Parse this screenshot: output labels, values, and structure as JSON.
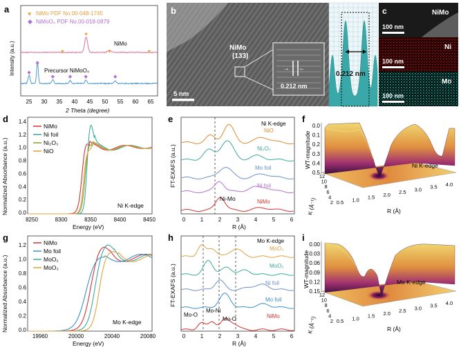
{
  "colors": {
    "pink": "#e0608a",
    "blue": "#3a8fc8",
    "gold": "#e6a64a",
    "purple": "#b070d0",
    "red": "#d43030",
    "teal": "#3aa89a",
    "olive": "#8a9a30",
    "tan": "#e0a040",
    "orange": "#e08a30",
    "slate": "#6a8fc8",
    "cyan": "#40d0c0",
    "ncolor": "#d02020"
  },
  "panel_a": {
    "label": "a",
    "legend": [
      "NiMo PDF No.00-048-1745",
      "NiMoO₄ PDF No.00-018-0879"
    ],
    "trace_labels": [
      "NiMo",
      "Precursor NiMoO₄"
    ],
    "ylabel": "Intensity (a.u.)",
    "xlabel": "2 Theta (degree)",
    "xticks": [
      "25",
      "30",
      "35",
      "40",
      "45",
      "50",
      "55",
      "60",
      "65"
    ]
  },
  "panel_b": {
    "label": "b",
    "phase": "NiMo",
    "plane": "(133)",
    "inset_spacing": "0.212 nm",
    "profile_spacing": "0.212 nm",
    "scale": "5 nm"
  },
  "panel_c": {
    "label": "c",
    "maps": [
      {
        "element": "NiMo",
        "scale": "100 nm"
      },
      {
        "element": "Ni",
        "scale": "100 nm"
      },
      {
        "element": "Mo",
        "scale": "100 nm"
      }
    ]
  },
  "panel_d": {
    "label": "d",
    "ylabel": "Normalized Absorbance (a.u.)",
    "xlabel": "Energy (eV)",
    "edge": "Ni K-edge",
    "legend": [
      "NiMo",
      "Ni foil",
      "Ni₂O₃",
      "NiO"
    ],
    "yticks": [
      "0.0",
      "0.2",
      "0.4",
      "0.6",
      "0.8",
      "1.0",
      "1.2",
      "1.4"
    ],
    "xticks": [
      "8250",
      "8300",
      "8350",
      "8400",
      "8450"
    ]
  },
  "panel_e": {
    "label": "e",
    "ylabel": "FT-EXAFS (a.u.)",
    "xlabel": "R (Å)",
    "edge": "Ni K-edge",
    "traces": [
      "NiO",
      "Ni₂O₃",
      "Mo foil",
      "Ni foil",
      "NiMo"
    ],
    "annotation": "Ni-Mo",
    "xticks": [
      "0",
      "1",
      "2",
      "3",
      "4",
      "5",
      "6"
    ]
  },
  "panel_f": {
    "label": "f",
    "zlabel": "WT-magnitude",
    "edge": "Ni K-edge",
    "zticks": [
      "0.0",
      "0.1",
      "0.2",
      "0.3",
      "0.4",
      "0.5"
    ],
    "klabel": "K (Å⁻¹)",
    "kticks": [
      "12",
      "10",
      "8",
      "6",
      "4",
      "2"
    ],
    "rlabel": "R (Å)",
    "rticks": [
      "0.5",
      "1.0",
      "1.5",
      "2.0",
      "2.5",
      "3.0",
      "3.5",
      "4.0"
    ]
  },
  "panel_g": {
    "label": "g",
    "ylabel": "Normalized Absorbance (a.u.)",
    "xlabel": "Energy (eV)",
    "edge": "Mo K-edge",
    "legend": [
      "NiMo",
      "Mo foil",
      "MoO₂",
      "MoO₃"
    ],
    "yticks": [
      "0.0",
      "0.2",
      "0.4",
      "0.6",
      "0.8",
      "1.0",
      "1.2"
    ],
    "xticks": [
      "19960",
      "20000",
      "20040",
      "20080"
    ]
  },
  "panel_h": {
    "label": "h",
    "ylabel": "FT-EXAFS (a.u.)",
    "xlabel": "R (Å)",
    "edge": "Mo K-edge",
    "traces": [
      "MoO₃",
      "MoO₂",
      "Ni foil",
      "Mo foil",
      "NiMo"
    ],
    "annotations": [
      "Mo-O",
      "Mo-Ni",
      "Mo-O"
    ],
    "xticks": [
      "0",
      "1",
      "2",
      "3",
      "4",
      "5",
      "6"
    ]
  },
  "panel_i": {
    "label": "i",
    "zlabel": "WT-magnitude",
    "edge": "Mo K-edge",
    "zticks": [
      "0.00",
      "0.03",
      "0.06",
      "0.09",
      "0.12",
      "0.15"
    ],
    "klabel": "K (Å⁻¹)",
    "kticks": [
      "12",
      "10",
      "8",
      "6",
      "4",
      "2"
    ],
    "rlabel": "R (Å)",
    "rticks": [
      "0.5",
      "1.0",
      "1.5",
      "2.0",
      "2.5",
      "3.0",
      "3.5",
      "4.0"
    ]
  }
}
